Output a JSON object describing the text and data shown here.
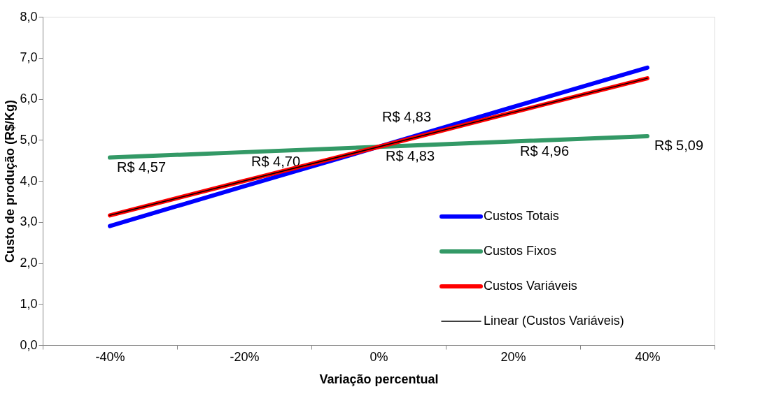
{
  "chart_data": {
    "type": "line",
    "xlabel": "Variação percentual",
    "ylabel": "Custo de produção (R$/Kg)",
    "categories": [
      "-40%",
      "-20%",
      "0%",
      "20%",
      "40%"
    ],
    "series": [
      {
        "name": "Custos Totais",
        "color": "#0000ff",
        "values": [
          2.9,
          3.87,
          4.83,
          5.8,
          6.76
        ]
      },
      {
        "name": "Custos Fixos",
        "color": "#339966",
        "values": [
          4.57,
          4.7,
          4.83,
          4.96,
          5.09
        ],
        "value_labels": [
          "R$ 4,57",
          "R$ 4,70",
          "R$ 4,83",
          "R$ 4,96",
          "R$ 5,09"
        ]
      },
      {
        "name": "Custos Variáveis",
        "color": "#ff0000",
        "values": [
          3.16,
          4.0,
          4.83,
          5.67,
          6.5
        ]
      },
      {
        "name": "Linear (Custos Variáveis)",
        "type": "line",
        "color": "#000000",
        "values": [
          3.16,
          4.0,
          4.83,
          5.67,
          6.5
        ]
      }
    ],
    "annotations": [
      {
        "text": "R$ 4,83",
        "x": "0%",
        "y": 4.83
      }
    ],
    "ylim": [
      0,
      8
    ],
    "yticks": [
      {
        "value": 0,
        "label": "0,0"
      },
      {
        "value": 1,
        "label": "1,0"
      },
      {
        "value": 2,
        "label": "2,0"
      },
      {
        "value": 3,
        "label": "3,0"
      },
      {
        "value": 4,
        "label": "4,0"
      },
      {
        "value": 5,
        "label": "5,0"
      },
      {
        "value": 6,
        "label": "6,0"
      },
      {
        "value": 7,
        "label": "7,0"
      },
      {
        "value": 8,
        "label": "8,0"
      }
    ],
    "grid": false,
    "legend": "bottom right"
  }
}
